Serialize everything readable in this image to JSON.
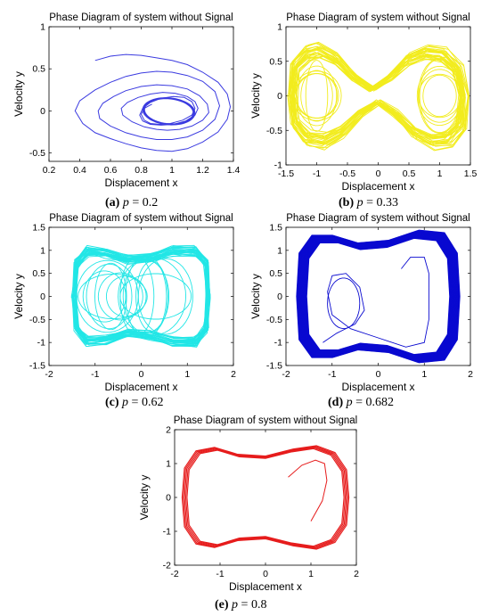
{
  "figure": {
    "panels": [
      {
        "id": "a",
        "caption_label": "(a)",
        "caption_var": "p",
        "caption_value": "= 0.2"
      },
      {
        "id": "b",
        "caption_label": "(b)",
        "caption_var": "p",
        "caption_value": "= 0.33"
      },
      {
        "id": "c",
        "caption_label": "(c)",
        "caption_var": "p",
        "caption_value": "= 0.62"
      },
      {
        "id": "d",
        "caption_label": "(d)",
        "caption_var": "p",
        "caption_value": "= 0.682"
      },
      {
        "id": "e",
        "caption_label": "(e)",
        "caption_var": "p",
        "caption_value": "= 0.8"
      }
    ]
  },
  "chart_data": [
    {
      "type": "line",
      "title": "Phase Diagram of  system without Signal",
      "xlabel": "Displacement x",
      "ylabel": "Velocity y",
      "xlim": [
        0.2,
        1.4
      ],
      "ylim": [
        -0.6,
        1
      ],
      "xticks": [
        "0.2",
        "0.4",
        "0.6",
        "0.8",
        "1",
        "1.2",
        "1.4"
      ],
      "yticks": [
        "-0.5",
        "0",
        "0.5",
        "1"
      ],
      "color": "#3b3be0",
      "pattern": "spiral-in",
      "x": [
        0.5,
        0.6,
        0.7,
        0.8,
        0.9,
        1.0,
        1.1,
        1.2,
        1.3,
        1.36,
        1.38,
        1.36,
        1.3,
        1.2,
        1.1,
        1.0,
        0.9,
        0.8,
        0.7,
        0.6,
        0.5,
        0.42,
        0.37,
        0.4,
        0.5,
        0.6,
        0.7,
        0.8,
        0.9,
        1.0,
        1.1,
        1.2,
        1.28,
        1.31,
        1.28,
        1.2,
        1.1,
        1.0,
        0.9,
        0.8,
        0.7,
        0.6,
        0.53,
        0.52,
        0.55,
        0.62,
        0.7,
        0.8,
        0.9,
        1.0,
        1.1,
        1.18,
        1.23,
        1.24,
        1.2,
        1.13,
        1.05,
        0.97,
        0.9,
        0.82,
        0.74,
        0.68,
        0.67,
        0.71,
        0.78,
        0.86,
        0.94,
        1.02,
        1.1,
        1.15,
        1.17,
        1.15,
        1.09,
        1.01,
        0.93,
        0.86,
        0.81,
        0.79,
        0.81,
        0.86,
        0.93,
        1.01,
        1.08,
        1.13,
        1.15,
        1.13,
        1.07,
        0.99,
        0.92,
        0.86,
        0.82,
        0.8,
        0.82,
        0.87
      ],
      "y": [
        0.6,
        0.65,
        0.67,
        0.66,
        0.63,
        0.6,
        0.55,
        0.46,
        0.34,
        0.2,
        0.05,
        -0.1,
        -0.25,
        -0.37,
        -0.45,
        -0.48,
        -0.47,
        -0.44,
        -0.39,
        -0.33,
        -0.26,
        -0.15,
        0.0,
        0.12,
        0.25,
        0.34,
        0.41,
        0.45,
        0.47,
        0.46,
        0.42,
        0.35,
        0.23,
        0.06,
        -0.1,
        -0.23,
        -0.31,
        -0.34,
        -0.34,
        -0.31,
        -0.26,
        -0.18,
        -0.09,
        0.0,
        0.09,
        0.17,
        0.24,
        0.29,
        0.31,
        0.3,
        0.26,
        0.18,
        0.08,
        -0.02,
        -0.11,
        -0.18,
        -0.22,
        -0.23,
        -0.22,
        -0.19,
        -0.13,
        -0.05,
        0.03,
        0.1,
        0.16,
        0.2,
        0.22,
        0.21,
        0.17,
        0.11,
        0.03,
        -0.05,
        -0.12,
        -0.16,
        -0.17,
        -0.16,
        -0.12,
        -0.05,
        0.03,
        0.1,
        0.15,
        0.17,
        0.16,
        0.11,
        0.03,
        -0.05,
        -0.11,
        -0.15,
        -0.16,
        -0.15,
        -0.11,
        -0.04,
        0.03,
        0.08
      ]
    },
    {
      "type": "line",
      "title": "Phase Diagram of  system without Signal",
      "xlabel": "Displacement x",
      "ylabel": "Velocity y",
      "xlim": [
        -1.5,
        1.5
      ],
      "ylim": [
        -1,
        1
      ],
      "xticks": [
        "-1.5",
        "-1",
        "-0.5",
        "0",
        "0.5",
        "1",
        "1.5"
      ],
      "yticks": [
        "-1",
        "-0.5",
        "0",
        "0.5",
        "1"
      ],
      "color": "#f2ec1e",
      "pattern": "chaotic-double-well",
      "x": [
        -1.45,
        -1.4,
        -1.2,
        -1.0,
        -0.7,
        -0.4,
        -0.1,
        0.2,
        0.5,
        0.8,
        1.1,
        1.35,
        1.45,
        1.4,
        1.2,
        0.9,
        0.6,
        0.3,
        0.0,
        -0.3,
        -0.6,
        -0.9,
        -1.2,
        -1.4
      ],
      "y": [
        0.0,
        0.5,
        0.7,
        0.75,
        0.6,
        0.3,
        0.1,
        0.3,
        0.6,
        0.72,
        0.68,
        0.45,
        0.0,
        -0.5,
        -0.72,
        -0.75,
        -0.6,
        -0.3,
        -0.1,
        -0.3,
        -0.6,
        -0.75,
        -0.7,
        -0.45
      ]
    },
    {
      "type": "line",
      "title": "Phase Diagram of  system without Signal",
      "xlabel": "Displacement x",
      "ylabel": "Velocity y",
      "xlim": [
        -2,
        2
      ],
      "ylim": [
        -1.5,
        1.5
      ],
      "xticks": [
        "-2",
        "-1",
        "0",
        "1",
        "2"
      ],
      "yticks": [
        "-1.5",
        "-1",
        "-0.5",
        "0",
        "0.5",
        "1",
        "1.5"
      ],
      "color": "#22e6e6",
      "pattern": "chaotic-wide",
      "x": [
        -1.5,
        -1.45,
        -1.2,
        -0.8,
        -0.3,
        0.2,
        0.7,
        1.2,
        1.45,
        1.5,
        1.45,
        1.2,
        0.7,
        0.2,
        -0.3,
        -0.8,
        -1.2,
        -1.45
      ],
      "y": [
        0.0,
        0.75,
        1.05,
        1.0,
        0.85,
        0.9,
        1.05,
        1.05,
        0.75,
        0.0,
        -0.75,
        -1.05,
        -1.05,
        -0.9,
        -0.85,
        -1.0,
        -1.05,
        -0.75
      ]
    },
    {
      "type": "line",
      "title": "Phase Diagram of  system without Signal",
      "xlabel": "Displacement x",
      "ylabel": "Velocity y",
      "xlim": [
        -2,
        2
      ],
      "ylim": [
        -1.5,
        1.5
      ],
      "xticks": [
        "-2",
        "-1",
        "0",
        "1",
        "2"
      ],
      "yticks": [
        "-1.5",
        "-1",
        "-0.5",
        "0",
        "0.5",
        "1",
        "1.5"
      ],
      "color": "#0a0ad0",
      "pattern": "limit-cycle-dense",
      "x": [
        -1.6,
        -1.55,
        -1.3,
        -0.9,
        -0.4,
        0.2,
        0.8,
        1.3,
        1.55,
        1.6,
        1.55,
        1.3,
        0.8,
        0.2,
        -0.4,
        -0.9,
        -1.3,
        -1.55
      ],
      "y": [
        0.0,
        0.85,
        1.2,
        1.2,
        1.05,
        1.1,
        1.3,
        1.25,
        0.85,
        0.0,
        -0.85,
        -1.25,
        -1.3,
        -1.1,
        -1.05,
        -1.2,
        -1.2,
        -0.85
      ]
    },
    {
      "type": "line",
      "title": "Phase Diagram of  system without Signal",
      "xlabel": "Displacement x",
      "ylabel": "Velocity y",
      "xlim": [
        -2,
        2
      ],
      "ylim": [
        -2,
        2
      ],
      "xticks": [
        "-2",
        "-1",
        "0",
        "1",
        "2"
      ],
      "yticks": [
        "-2",
        "-1",
        "0",
        "1",
        "2"
      ],
      "color": "#e61c1c",
      "pattern": "limit-cycle",
      "x": [
        -1.8,
        -1.75,
        -1.5,
        -1.1,
        -0.6,
        0.0,
        0.6,
        1.1,
        1.5,
        1.75,
        1.8,
        1.75,
        1.5,
        1.1,
        0.6,
        0.0,
        -0.6,
        -1.1,
        -1.5,
        -1.75
      ],
      "y": [
        0.0,
        0.85,
        1.35,
        1.45,
        1.25,
        1.2,
        1.4,
        1.5,
        1.3,
        0.8,
        0.0,
        -0.8,
        -1.3,
        -1.5,
        -1.4,
        -1.2,
        -1.25,
        -1.45,
        -1.35,
        -0.85
      ]
    }
  ]
}
